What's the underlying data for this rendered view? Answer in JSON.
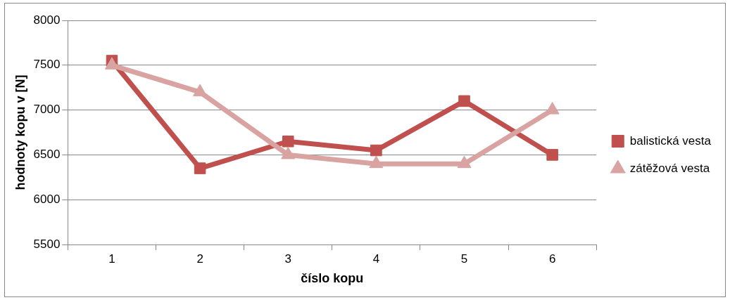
{
  "chart_data": {
    "type": "line",
    "xlabel": "číslo kopu",
    "ylabel": "hodnoty kopu v [N]",
    "categories": [
      "1",
      "2",
      "3",
      "4",
      "5",
      "6"
    ],
    "series": [
      {
        "name": "balistická vesta",
        "color": "#c0504d",
        "marker": "square",
        "values": [
          7550,
          6350,
          6650,
          6550,
          7100,
          6500
        ]
      },
      {
        "name": "zátěžová vesta",
        "color": "#d9a3a2",
        "marker": "triangle",
        "values": [
          7500,
          7200,
          6500,
          6400,
          6400,
          7000
        ]
      }
    ],
    "ylim": [
      5500,
      8000
    ],
    "yticks": [
      5500,
      6000,
      6500,
      7000,
      7500,
      8000
    ],
    "grid": "y",
    "legend": "right"
  }
}
